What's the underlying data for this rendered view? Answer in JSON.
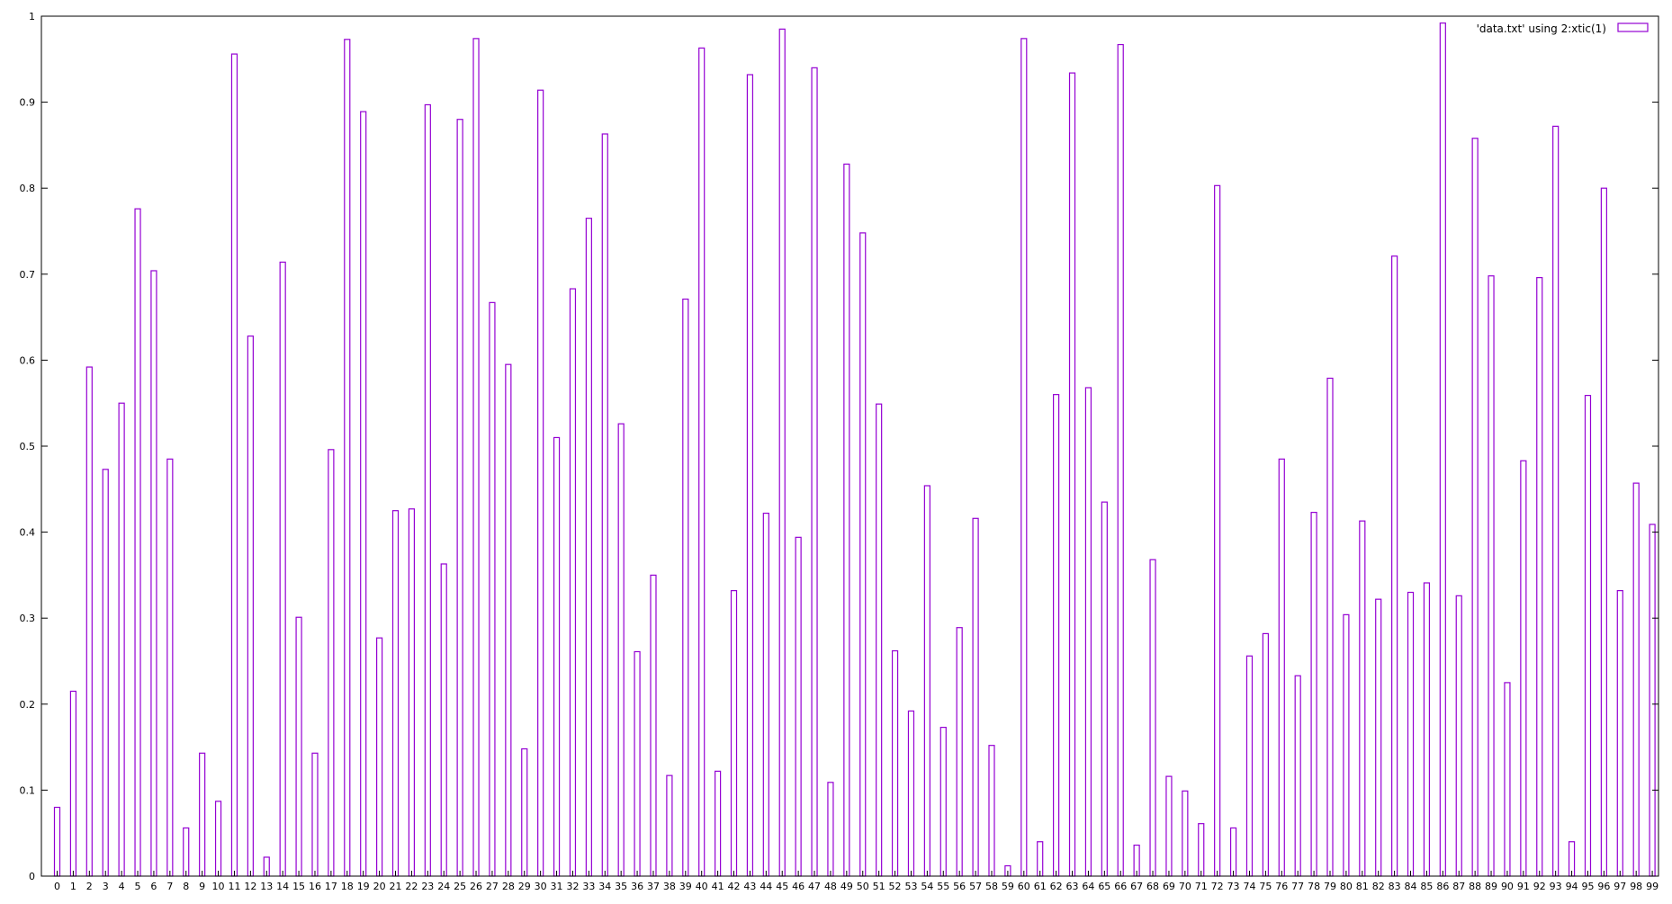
{
  "chart_data": {
    "type": "bar",
    "title": "",
    "xlabel": "",
    "ylabel": "",
    "ylim": [
      0,
      1
    ],
    "yticks": [
      0,
      0.1,
      0.2,
      0.3,
      0.4,
      0.5,
      0.6,
      0.7,
      0.8,
      0.9,
      1
    ],
    "ytick_labels": [
      "0",
      "0.1",
      "0.2",
      "0.3",
      "0.4",
      "0.5",
      "0.6",
      "0.7",
      "0.8",
      "0.9",
      "1"
    ],
    "grid": false,
    "legend": {
      "position": "top-right",
      "entries": [
        "'data.txt' using 2:xtic(1)"
      ]
    },
    "bar_color": "#9400d3",
    "categories": [
      "0",
      "1",
      "2",
      "3",
      "4",
      "5",
      "6",
      "7",
      "8",
      "9",
      "10",
      "11",
      "12",
      "13",
      "14",
      "15",
      "16",
      "17",
      "18",
      "19",
      "20",
      "21",
      "22",
      "23",
      "24",
      "25",
      "26",
      "27",
      "28",
      "29",
      "30",
      "31",
      "32",
      "33",
      "34",
      "35",
      "36",
      "37",
      "38",
      "39",
      "40",
      "41",
      "42",
      "43",
      "44",
      "45",
      "46",
      "47",
      "48",
      "49",
      "50",
      "51",
      "52",
      "53",
      "54",
      "55",
      "56",
      "57",
      "58",
      "59",
      "60",
      "61",
      "62",
      "63",
      "64",
      "65",
      "66",
      "67",
      "68",
      "69",
      "70",
      "71",
      "72",
      "73",
      "74",
      "75",
      "76",
      "77",
      "78",
      "79",
      "80",
      "81",
      "82",
      "83",
      "84",
      "85",
      "86",
      "87",
      "88",
      "89",
      "90",
      "91",
      "92",
      "93",
      "94",
      "95",
      "96",
      "97",
      "98",
      "99"
    ],
    "series": [
      {
        "name": "'data.txt' using 2:xtic(1)",
        "values": [
          0.08,
          0.215,
          0.592,
          0.473,
          0.55,
          0.776,
          0.704,
          0.485,
          0.056,
          0.143,
          0.087,
          0.956,
          0.628,
          0.022,
          0.714,
          0.301,
          0.143,
          0.496,
          0.973,
          0.889,
          0.277,
          0.425,
          0.427,
          0.897,
          0.363,
          0.88,
          0.974,
          0.667,
          0.595,
          0.148,
          0.914,
          0.51,
          0.683,
          0.765,
          0.863,
          0.526,
          0.261,
          0.35,
          0.117,
          0.671,
          0.963,
          0.122,
          0.332,
          0.932,
          0.422,
          0.985,
          0.394,
          0.94,
          0.109,
          0.828,
          0.748,
          0.549,
          0.262,
          0.192,
          0.454,
          0.173,
          0.289,
          0.416,
          0.152,
          0.012,
          0.974,
          0.04,
          0.56,
          0.934,
          0.568,
          0.435,
          0.967,
          0.036,
          0.368,
          0.116,
          0.099,
          0.061,
          0.803,
          0.056,
          0.256,
          0.282,
          0.485,
          0.233,
          0.423,
          0.579,
          0.304,
          0.413,
          0.322,
          0.721,
          0.33,
          0.341,
          0.992,
          0.326,
          0.858,
          0.698,
          0.225,
          0.483,
          0.696,
          0.872,
          0.04,
          0.559,
          0.8,
          0.332,
          0.457,
          0.409
        ]
      }
    ]
  }
}
